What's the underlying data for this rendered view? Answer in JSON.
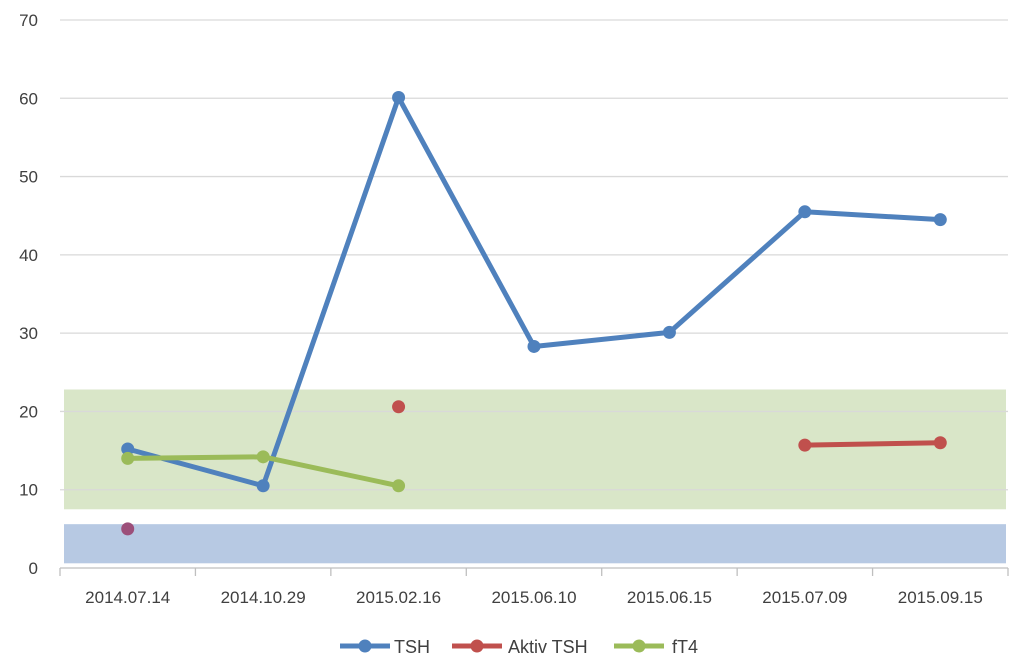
{
  "chart_data": {
    "type": "line",
    "categories": [
      "2014.07.14",
      "2014.10.29",
      "2015.02.16",
      "2015.06.10",
      "2015.06.15",
      "2015.07.09",
      "2015.09.15"
    ],
    "ylim": [
      0,
      70
    ],
    "yticks": [
      0,
      10,
      20,
      30,
      40,
      50,
      60,
      70
    ],
    "grid": true,
    "legend_position": "bottom",
    "bands": [
      {
        "from": 7.5,
        "to": 22.8,
        "color": "#d9e6c8"
      },
      {
        "from": 0.6,
        "to": 5.6,
        "color": "#b7c9e3"
      }
    ],
    "series": [
      {
        "name": "TSH",
        "color": "#4f81bd",
        "values": [
          15.2,
          10.5,
          60.1,
          28.3,
          30.1,
          45.5,
          44.5
        ]
      },
      {
        "name": "Aktiv TSH",
        "color": "#c0504d",
        "values": [
          5.0,
          null,
          20.6,
          null,
          null,
          15.7,
          16.0
        ]
      },
      {
        "name": "fT4",
        "color": "#9bbb59",
        "values": [
          14.0,
          14.2,
          10.5,
          null,
          null,
          null,
          null
        ]
      }
    ]
  }
}
